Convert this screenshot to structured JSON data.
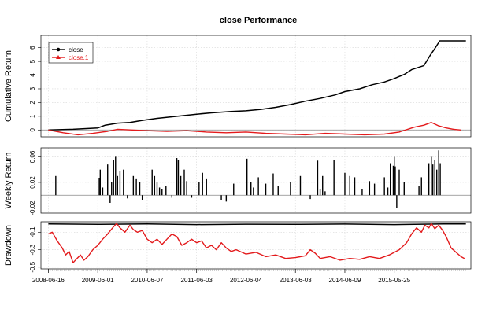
{
  "chart_data": {
    "type": "line",
    "title": "close Performance",
    "legend": {
      "placement": "top-left",
      "entries": [
        {
          "name": "close",
          "color": "#000000",
          "marker": "circle"
        },
        {
          "name": "close.1",
          "color": "#e31a1c",
          "marker": "triangle"
        }
      ]
    },
    "x_ticks": [
      "2008-06-16",
      "2009-06-01",
      "2010-06-07",
      "2011-06-03",
      "2012-06-04",
      "2013-06-03",
      "2014-06-09",
      "2015-05-25"
    ],
    "panels": [
      {
        "id": "cumulative",
        "ylabel": "Cumulative Return",
        "ylim": [
          -0.5,
          6.9
        ],
        "yticks": [
          "0",
          "1",
          "2",
          "3",
          "4",
          "5",
          "6"
        ],
        "grid": true,
        "series": [
          {
            "name": "close",
            "color": "#000000",
            "points": [
              [
                0,
                0
              ],
              [
                0.5,
                0.05
              ],
              [
                1.0,
                0.15
              ],
              [
                1.15,
                0.35
              ],
              [
                1.4,
                0.5
              ],
              [
                1.65,
                0.55
              ],
              [
                1.9,
                0.7
              ],
              [
                2.2,
                0.85
              ],
              [
                2.6,
                1.0
              ],
              [
                3.0,
                1.15
              ],
              [
                3.3,
                1.25
              ],
              [
                3.7,
                1.35
              ],
              [
                4.0,
                1.4
              ],
              [
                4.3,
                1.5
              ],
              [
                4.6,
                1.65
              ],
              [
                4.9,
                1.85
              ],
              [
                5.2,
                2.1
              ],
              [
                5.5,
                2.3
              ],
              [
                5.8,
                2.55
              ],
              [
                6.0,
                2.8
              ],
              [
                6.3,
                3.0
              ],
              [
                6.55,
                3.3
              ],
              [
                6.8,
                3.5
              ],
              [
                7.0,
                3.75
              ],
              [
                7.2,
                4.05
              ],
              [
                7.35,
                4.4
              ],
              [
                7.6,
                4.7
              ],
              [
                7.72,
                5.4
              ],
              [
                7.85,
                6.1
              ],
              [
                7.92,
                6.5
              ],
              [
                8.45,
                6.5
              ]
            ]
          },
          {
            "name": "close.1",
            "color": "#e31a1c",
            "points": [
              [
                0,
                0
              ],
              [
                0.3,
                -0.2
              ],
              [
                0.6,
                -0.35
              ],
              [
                0.9,
                -0.25
              ],
              [
                1.2,
                -0.1
              ],
              [
                1.4,
                0.05
              ],
              [
                1.7,
                0.0
              ],
              [
                2.0,
                -0.05
              ],
              [
                2.4,
                -0.1
              ],
              [
                2.8,
                -0.05
              ],
              [
                3.2,
                -0.15
              ],
              [
                3.6,
                -0.2
              ],
              [
                4.0,
                -0.15
              ],
              [
                4.4,
                -0.25
              ],
              [
                4.8,
                -0.3
              ],
              [
                5.2,
                -0.35
              ],
              [
                5.6,
                -0.25
              ],
              [
                6.0,
                -0.3
              ],
              [
                6.4,
                -0.35
              ],
              [
                6.8,
                -0.3
              ],
              [
                7.1,
                -0.15
              ],
              [
                7.4,
                0.2
              ],
              [
                7.6,
                0.35
              ],
              [
                7.75,
                0.55
              ],
              [
                7.9,
                0.3
              ],
              [
                8.05,
                0.15
              ],
              [
                8.2,
                0.05
              ],
              [
                8.35,
                0.0
              ]
            ]
          }
        ]
      },
      {
        "id": "weekly",
        "ylabel": "Weekly Return",
        "ylim": [
          -0.028,
          0.074
        ],
        "yticks": [
          "-0.02",
          "0.02",
          "0.06"
        ],
        "grid": true,
        "type": "histogram",
        "series": [
          {
            "name": "close",
            "color": "#000000",
            "bars": [
              [
                0.15,
                0.03
              ],
              [
                1.03,
                0.027
              ],
              [
                1.05,
                0.04
              ],
              [
                1.1,
                0.012
              ],
              [
                1.2,
                0.048
              ],
              [
                1.25,
                -0.012
              ],
              [
                1.28,
                0.02
              ],
              [
                1.32,
                0.055
              ],
              [
                1.36,
                0.06
              ],
              [
                1.4,
                0.03
              ],
              [
                1.45,
                0.038
              ],
              [
                1.52,
                0.04
              ],
              [
                1.6,
                -0.005
              ],
              [
                1.72,
                0.03
              ],
              [
                1.78,
                0.025
              ],
              [
                1.85,
                0.02
              ],
              [
                1.9,
                -0.008
              ],
              [
                2.1,
                0.04
              ],
              [
                2.15,
                0.03
              ],
              [
                2.2,
                0.02
              ],
              [
                2.25,
                0.012
              ],
              [
                2.3,
                0.01
              ],
              [
                2.38,
                0.015
              ],
              [
                2.5,
                -0.004
              ],
              [
                2.6,
                0.058
              ],
              [
                2.63,
                0.055
              ],
              [
                2.68,
                0.03
              ],
              [
                2.75,
                0.04
              ],
              [
                2.8,
                0.022
              ],
              [
                2.9,
                -0.004
              ],
              [
                3.05,
                0.02
              ],
              [
                3.12,
                0.035
              ],
              [
                3.2,
                0.025
              ],
              [
                3.5,
                -0.008
              ],
              [
                3.6,
                -0.01
              ],
              [
                3.75,
                0.018
              ],
              [
                4.02,
                0.057
              ],
              [
                4.1,
                0.02
              ],
              [
                4.15,
                0.012
              ],
              [
                4.25,
                0.028
              ],
              [
                4.4,
                0.018
              ],
              [
                4.55,
                0.034
              ],
              [
                4.65,
                0.014
              ],
              [
                4.9,
                0.02
              ],
              [
                5.1,
                0.03
              ],
              [
                5.3,
                -0.006
              ],
              [
                5.45,
                0.054
              ],
              [
                5.5,
                0.01
              ],
              [
                5.55,
                0.03
              ],
              [
                5.6,
                0.006
              ],
              [
                5.78,
                0.055
              ],
              [
                6.0,
                0.035
              ],
              [
                6.1,
                0.03
              ],
              [
                6.2,
                0.028
              ],
              [
                6.35,
                0.01
              ],
              [
                6.5,
                0.022
              ],
              [
                6.6,
                0.018
              ],
              [
                6.8,
                0.028
              ],
              [
                6.87,
                0.012
              ],
              [
                6.92,
                0.05
              ],
              [
                6.98,
                0.046
              ],
              [
                7.0,
                0.06
              ],
              [
                7.02,
                0.045
              ],
              [
                7.05,
                -0.02
              ],
              [
                7.1,
                0.04
              ],
              [
                7.2,
                0.02
              ],
              [
                7.5,
                0.014
              ],
              [
                7.55,
                0.028
              ],
              [
                7.7,
                0.05
              ],
              [
                7.75,
                0.06
              ],
              [
                7.78,
                0.048
              ],
              [
                7.82,
                0.055
              ],
              [
                7.86,
                0.04
              ],
              [
                7.9,
                0.07
              ],
              [
                7.93,
                0.05
              ]
            ]
          }
        ]
      },
      {
        "id": "drawdown",
        "ylabel": "Drawdown",
        "ylim": [
          -0.52,
          0.02
        ],
        "yticks": [
          "-0.5",
          "-0.3",
          "-0.1"
        ],
        "grid": true,
        "series": [
          {
            "name": "close",
            "color": "#000000",
            "points": [
              [
                0,
                -0.005
              ],
              [
                1.0,
                -0.01
              ],
              [
                2.0,
                -0.005
              ],
              [
                3.0,
                -0.012
              ],
              [
                4.0,
                -0.008
              ],
              [
                5.0,
                -0.01
              ],
              [
                6.0,
                -0.006
              ],
              [
                7.0,
                -0.012
              ],
              [
                8.0,
                -0.005
              ],
              [
                8.45,
                -0.004
              ]
            ]
          },
          {
            "name": "close.1",
            "color": "#e31a1c",
            "points": [
              [
                0,
                -0.12
              ],
              [
                0.08,
                -0.1
              ],
              [
                0.18,
                -0.2
              ],
              [
                0.28,
                -0.28
              ],
              [
                0.35,
                -0.36
              ],
              [
                0.42,
                -0.32
              ],
              [
                0.5,
                -0.45
              ],
              [
                0.58,
                -0.4
              ],
              [
                0.65,
                -0.36
              ],
              [
                0.72,
                -0.42
              ],
              [
                0.8,
                -0.38
              ],
              [
                0.9,
                -0.3
              ],
              [
                1.0,
                -0.25
              ],
              [
                1.1,
                -0.18
              ],
              [
                1.2,
                -0.12
              ],
              [
                1.3,
                -0.05
              ],
              [
                1.38,
                0
              ],
              [
                1.45,
                -0.05
              ],
              [
                1.55,
                -0.1
              ],
              [
                1.65,
                -0.02
              ],
              [
                1.72,
                -0.07
              ],
              [
                1.8,
                -0.1
              ],
              [
                1.9,
                -0.08
              ],
              [
                2.0,
                -0.18
              ],
              [
                2.1,
                -0.22
              ],
              [
                2.2,
                -0.18
              ],
              [
                2.3,
                -0.24
              ],
              [
                2.4,
                -0.18
              ],
              [
                2.5,
                -0.12
              ],
              [
                2.6,
                -0.15
              ],
              [
                2.7,
                -0.25
              ],
              [
                2.8,
                -0.22
              ],
              [
                2.9,
                -0.18
              ],
              [
                3.0,
                -0.22
              ],
              [
                3.1,
                -0.2
              ],
              [
                3.2,
                -0.28
              ],
              [
                3.3,
                -0.25
              ],
              [
                3.4,
                -0.3
              ],
              [
                3.5,
                -0.22
              ],
              [
                3.6,
                -0.28
              ],
              [
                3.7,
                -0.32
              ],
              [
                3.8,
                -0.3
              ],
              [
                4.0,
                -0.35
              ],
              [
                4.2,
                -0.33
              ],
              [
                4.4,
                -0.38
              ],
              [
                4.6,
                -0.36
              ],
              [
                4.8,
                -0.4
              ],
              [
                5.0,
                -0.39
              ],
              [
                5.2,
                -0.37
              ],
              [
                5.3,
                -0.3
              ],
              [
                5.4,
                -0.34
              ],
              [
                5.5,
                -0.4
              ],
              [
                5.7,
                -0.38
              ],
              [
                5.9,
                -0.42
              ],
              [
                6.1,
                -0.4
              ],
              [
                6.3,
                -0.41
              ],
              [
                6.5,
                -0.38
              ],
              [
                6.7,
                -0.4
              ],
              [
                6.9,
                -0.36
              ],
              [
                7.1,
                -0.3
              ],
              [
                7.25,
                -0.22
              ],
              [
                7.35,
                -0.12
              ],
              [
                7.45,
                -0.05
              ],
              [
                7.55,
                -0.1
              ],
              [
                7.62,
                -0.02
              ],
              [
                7.7,
                -0.05
              ],
              [
                7.75,
                0
              ],
              [
                7.82,
                -0.06
              ],
              [
                7.9,
                -0.02
              ],
              [
                7.98,
                -0.08
              ],
              [
                8.05,
                -0.15
              ],
              [
                8.15,
                -0.28
              ],
              [
                8.25,
                -0.33
              ],
              [
                8.35,
                -0.38
              ],
              [
                8.42,
                -0.4
              ]
            ]
          }
        ]
      }
    ]
  }
}
